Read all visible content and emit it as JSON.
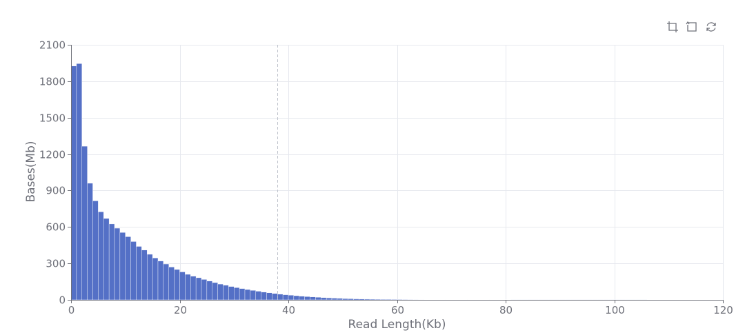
{
  "toolbox": {
    "icons": [
      "zoom-icon",
      "zoom-reset-icon",
      "restore-icon"
    ]
  },
  "colors": {
    "bar": "#5470c6",
    "grid": "#e6e8ee",
    "axis": "#6e7079",
    "marker": "#bfc3cc"
  },
  "chart_data": {
    "type": "bar",
    "xlabel": "Read Length(Kb)",
    "ylabel": "Bases(Mb)",
    "xlim": [
      0,
      120
    ],
    "ylim": [
      0,
      2100
    ],
    "xticks": [
      0,
      20,
      40,
      60,
      80,
      100,
      120
    ],
    "yticks": [
      0,
      300,
      600,
      900,
      1200,
      1500,
      1800,
      2100
    ],
    "grid": true,
    "legend": "none",
    "bin_width_kb": 1,
    "reference_line_x": 38,
    "series": [
      {
        "values": [
          1925,
          1945,
          1265,
          960,
          815,
          725,
          670,
          625,
          590,
          555,
          520,
          480,
          440,
          410,
          375,
          345,
          320,
          295,
          270,
          250,
          230,
          210,
          195,
          182,
          168,
          155,
          142,
          130,
          120,
          110,
          101,
          93,
          85,
          78,
          71,
          64,
          58,
          52,
          47,
          42,
          38,
          34,
          30,
          27,
          24,
          21,
          18,
          16,
          14,
          12,
          10,
          9,
          8,
          7,
          6,
          5.5,
          5,
          4.5,
          4,
          3.6,
          3.3,
          3,
          2.8,
          2.6,
          2.4,
          2.2,
          2.1,
          2,
          1.9,
          1.8,
          1.7,
          1.6,
          1.5,
          1.5,
          1.4,
          1.4,
          1.3,
          1.3,
          1.2,
          1.2,
          1.2,
          1.1,
          1.1,
          1.1,
          1,
          1,
          1,
          1,
          0.9,
          0.9,
          0.9,
          0.9,
          0.8,
          0.8,
          0.8,
          0.8,
          0.8,
          0.7,
          0.7,
          0.7,
          0.7,
          0.7,
          0.6,
          0.6,
          0.6,
          0.6
        ]
      }
    ]
  }
}
